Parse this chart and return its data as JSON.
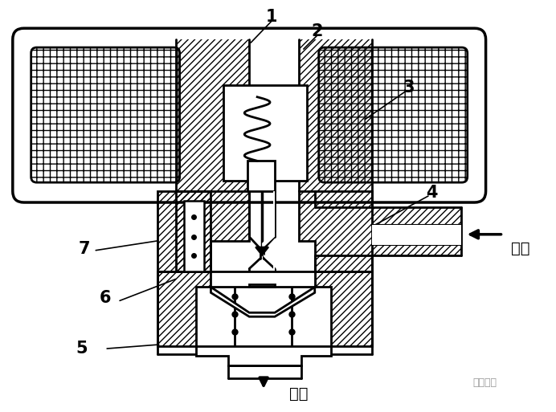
{
  "background_color": "#ffffff",
  "line_color": "#000000",
  "labels": {
    "inlet_text": "进口",
    "outlet_text": "出口",
    "watermark": "制冷百科"
  },
  "figsize": [
    6.92,
    5.13
  ],
  "dpi": 100
}
